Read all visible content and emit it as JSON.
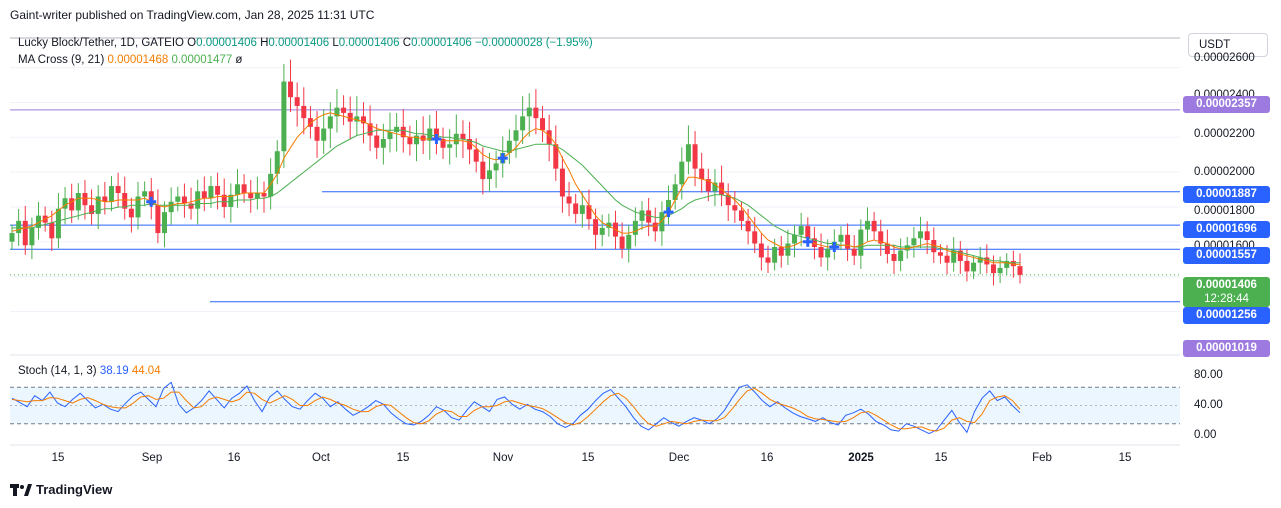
{
  "header": "Gaint-writer published on TradingView.com, Jan 28, 2025 11:31 UTC",
  "legend": {
    "symbol": "Lucky Block/Tether, 1D, GATEIO",
    "o_label": "O",
    "o_value": "0.00001406",
    "h_label": "H",
    "h_value": "0.00001406",
    "l_label": "L",
    "l_value": "0.00001406",
    "c_label": "C",
    "c_value": "0.00001406",
    "change": "−0.00000028 (−1.95%)",
    "ma_label": "MA Cross (9, 21)",
    "ma_fast": "0.00001468",
    "ma_slow": "0.00001477",
    "ma_extra": "ø"
  },
  "stoch_legend": {
    "label": "Stoch (14, 1, 3)",
    "k": "38.19",
    "d": "44.04"
  },
  "currency": "USDT",
  "footer": "TradingView",
  "price_axis": [
    "0.00002600",
    "0.00002400",
    "0.00002200",
    "0.00002000",
    "0.00001800",
    "0.00001600"
  ],
  "stoch_axis": [
    "80.00",
    "40.00",
    "0.00"
  ],
  "price_tags": {
    "t2357": "0.00002357",
    "t1887": "0.00001887",
    "t1696": "0.00001696",
    "t1557": "0.00001557",
    "current": "0.00001406",
    "countdown": "12:28:44",
    "t1256": "0.00001256",
    "t1019": "0.00001019"
  },
  "time_axis": [
    {
      "label": "15",
      "bold": false
    },
    {
      "label": "Sep",
      "bold": false
    },
    {
      "label": "16",
      "bold": false
    },
    {
      "label": "Oct",
      "bold": false
    },
    {
      "label": "15",
      "bold": false
    },
    {
      "label": "Nov",
      "bold": false
    },
    {
      "label": "15",
      "bold": false
    },
    {
      "label": "Dec",
      "bold": false
    },
    {
      "label": "16",
      "bold": false
    },
    {
      "label": "2025",
      "bold": true
    },
    {
      "label": "15",
      "bold": false
    },
    {
      "label": "Feb",
      "bold": false
    },
    {
      "label": "15",
      "bold": false
    }
  ],
  "colors": {
    "up": "#4caf50",
    "down": "#f23645",
    "ma_fast": "#f57c00",
    "ma_slow": "#4caf50",
    "line_blue": "#2962ff",
    "tag_purple": "#9c7ae0",
    "tag_green": "#4caf50"
  },
  "chart_data": {
    "type": "candlestick",
    "ylim": [
      9.5e-06,
      2.77e-05
    ],
    "horizontal_levels": [
      2.357e-05,
      1.887e-05,
      1.696e-05,
      1.557e-05,
      1.256e-05
    ],
    "closes": [
      1.65e-05,
      1.72e-05,
      1.58e-05,
      1.68e-05,
      1.75e-05,
      1.71e-05,
      1.62e-05,
      1.79e-05,
      1.85e-05,
      1.78e-05,
      1.88e-05,
      1.81e-05,
      1.76e-05,
      1.86e-05,
      1.83e-05,
      1.92e-05,
      1.88e-05,
      1.79e-05,
      1.74e-05,
      1.86e-05,
      1.89e-05,
      1.81e-05,
      1.65e-05,
      1.77e-05,
      1.83e-05,
      1.86e-05,
      1.82e-05,
      1.79e-05,
      1.89e-05,
      1.85e-05,
      1.92e-05,
      1.87e-05,
      1.8e-05,
      1.87e-05,
      1.93e-05,
      1.88e-05,
      1.85e-05,
      1.88e-05,
      1.86e-05,
      1.99e-05,
      2.12e-05,
      2.52e-05,
      2.43e-05,
      2.38e-05,
      2.31e-05,
      2.26e-05,
      2.18e-05,
      2.25e-05,
      2.32e-05,
      2.37e-05,
      2.34e-05,
      2.29e-05,
      2.32e-05,
      2.28e-05,
      2.21e-05,
      2.14e-05,
      2.19e-05,
      2.23e-05,
      2.26e-05,
      2.2e-05,
      2.16e-05,
      2.21e-05,
      2.18e-05,
      2.25e-05,
      2.19e-05,
      2.14e-05,
      2.16e-05,
      2.22e-05,
      2.19e-05,
      2.13e-05,
      2.06e-05,
      1.96e-05,
      2.01e-05,
      2.05e-05,
      2.11e-05,
      2.18e-05,
      2.24e-05,
      2.32e-05,
      2.37e-05,
      2.31e-05,
      2.24e-05,
      2.16e-05,
      2.02e-05,
      1.86e-05,
      1.82e-05,
      1.76e-05,
      1.81e-05,
      1.73e-05,
      1.64e-05,
      1.68e-05,
      1.71e-05,
      1.63e-05,
      1.56e-05,
      1.64e-05,
      1.72e-05,
      1.78e-05,
      1.71e-05,
      1.66e-05,
      1.77e-05,
      1.84e-05,
      1.93e-05,
      2.06e-05,
      2.16e-05,
      2.02e-05,
      1.96e-05,
      1.89e-05,
      1.94e-05,
      1.87e-05,
      1.81e-05,
      1.78e-05,
      1.72e-05,
      1.66e-05,
      1.59e-05,
      1.51e-05,
      1.48e-05,
      1.57e-05,
      1.52e-05,
      1.59e-05,
      1.64e-05,
      1.69e-05,
      1.62e-05,
      1.57e-05,
      1.51e-05,
      1.56e-05,
      1.6e-05,
      1.64e-05,
      1.56e-05,
      1.52e-05,
      1.67e-05,
      1.72e-05,
      1.66e-05,
      1.59e-05,
      1.53e-05,
      1.49e-05,
      1.55e-05,
      1.58e-05,
      1.62e-05,
      1.66e-05,
      1.61e-05,
      1.54e-05,
      1.52e-05,
      1.48e-05,
      1.55e-05,
      1.49e-05,
      1.43e-05,
      1.48e-05,
      1.51e-05,
      1.47e-05,
      1.42e-05,
      1.45e-05,
      1.49e-05,
      1.46e-05,
      1.41e-05
    ],
    "ma_fast_series": [
      1.66e-05,
      1.67e-05,
      1.68e-05,
      1.69e-05,
      1.71e-05,
      1.73e-05,
      1.75e-05,
      1.78e-05,
      1.81e-05,
      1.83e-05,
      1.85e-05,
      1.85e-05,
      1.85e-05,
      1.84e-05,
      1.83e-05,
      1.83e-05,
      1.84e-05,
      1.84e-05,
      1.84e-05,
      1.84e-05,
      1.85e-05,
      1.83e-05,
      1.81e-05,
      1.8e-05,
      1.81e-05,
      1.82e-05,
      1.82e-05,
      1.83e-05,
      1.84e-05,
      1.85e-05,
      1.85e-05,
      1.86e-05,
      1.86e-05,
      1.86e-05,
      1.87e-05,
      1.88e-05,
      1.88e-05,
      1.88e-05,
      1.88e-05,
      1.93e-05,
      1.99e-05,
      2.08e-05,
      2.14e-05,
      2.2e-05,
      2.24e-05,
      2.28e-05,
      2.31e-05,
      2.33e-05,
      2.34e-05,
      2.33e-05,
      2.32e-05,
      2.31e-05,
      2.3e-05,
      2.29e-05,
      2.27e-05,
      2.25e-05,
      2.24e-05,
      2.23e-05,
      2.22e-05,
      2.21e-05,
      2.2e-05,
      2.2e-05,
      2.19e-05,
      2.19e-05,
      2.19e-05,
      2.18e-05,
      2.18e-05,
      2.18e-05,
      2.18e-05,
      2.17e-05,
      2.14e-05,
      2.1e-05,
      2.08e-05,
      2.07e-05,
      2.08e-05,
      2.11e-05,
      2.14e-05,
      2.19e-05,
      2.23e-05,
      2.25e-05,
      2.24e-05,
      2.21e-05,
      2.16e-05,
      2.08e-05,
      2.01e-05,
      1.93e-05,
      1.87e-05,
      1.81e-05,
      1.75e-05,
      1.71e-05,
      1.69e-05,
      1.67e-05,
      1.65e-05,
      1.65e-05,
      1.66e-05,
      1.68e-05,
      1.69e-05,
      1.69e-05,
      1.72e-05,
      1.77e-05,
      1.84e-05,
      1.91e-05,
      1.97e-05,
      1.97e-05,
      1.96e-05,
      1.95e-05,
      1.93e-05,
      1.9e-05,
      1.87e-05,
      1.84e-05,
      1.8e-05,
      1.75e-05,
      1.7e-05,
      1.65e-05,
      1.61e-05,
      1.59e-05,
      1.57e-05,
      1.57e-05,
      1.58e-05,
      1.6e-05,
      1.6e-05,
      1.59e-05,
      1.58e-05,
      1.57e-05,
      1.57e-05,
      1.58e-05,
      1.58e-05,
      1.57e-05,
      1.58e-05,
      1.6e-05,
      1.61e-05,
      1.6e-05,
      1.59e-05,
      1.57e-05,
      1.56e-05,
      1.56e-05,
      1.57e-05,
      1.58e-05,
      1.59e-05,
      1.58e-05,
      1.57e-05,
      1.55e-05,
      1.54e-05,
      1.53e-05,
      1.52e-05,
      1.51e-05,
      1.5e-05,
      1.49e-05,
      1.48e-05,
      1.48e-05,
      1.48e-05,
      1.47e-05,
      1.47e-05
    ],
    "ma_slow_series": [
      1.68e-05,
      1.68e-05,
      1.68e-05,
      1.68e-05,
      1.69e-05,
      1.7e-05,
      1.71e-05,
      1.72e-05,
      1.73e-05,
      1.74e-05,
      1.75e-05,
      1.76e-05,
      1.77e-05,
      1.78e-05,
      1.79e-05,
      1.79e-05,
      1.8e-05,
      1.8e-05,
      1.81e-05,
      1.81e-05,
      1.81e-05,
      1.82e-05,
      1.81e-05,
      1.81e-05,
      1.81e-05,
      1.81e-05,
      1.81e-05,
      1.81e-05,
      1.82e-05,
      1.82e-05,
      1.82e-05,
      1.83e-05,
      1.83e-05,
      1.83e-05,
      1.84e-05,
      1.84e-05,
      1.84e-05,
      1.85e-05,
      1.85e-05,
      1.86e-05,
      1.88e-05,
      1.91e-05,
      1.94e-05,
      1.97e-05,
      2e-05,
      2.03e-05,
      2.06e-05,
      2.09e-05,
      2.12e-05,
      2.15e-05,
      2.17e-05,
      2.19e-05,
      2.21e-05,
      2.22e-05,
      2.23e-05,
      2.24e-05,
      2.24e-05,
      2.24e-05,
      2.24e-05,
      2.24e-05,
      2.23e-05,
      2.22e-05,
      2.22e-05,
      2.21e-05,
      2.21e-05,
      2.2e-05,
      2.2e-05,
      2.19e-05,
      2.19e-05,
      2.18e-05,
      2.17e-05,
      2.15e-05,
      2.14e-05,
      2.13e-05,
      2.12e-05,
      2.12e-05,
      2.13e-05,
      2.14e-05,
      2.15e-05,
      2.16e-05,
      2.16e-05,
      2.16e-05,
      2.15e-05,
      2.13e-05,
      2.1e-05,
      2.07e-05,
      2.04e-05,
      2e-05,
      1.96e-05,
      1.92e-05,
      1.88e-05,
      1.84e-05,
      1.81e-05,
      1.79e-05,
      1.77e-05,
      1.76e-05,
      1.75e-05,
      1.74e-05,
      1.74e-05,
      1.75e-05,
      1.77e-05,
      1.79e-05,
      1.82e-05,
      1.84e-05,
      1.85e-05,
      1.86e-05,
      1.87e-05,
      1.87e-05,
      1.86e-05,
      1.85e-05,
      1.83e-05,
      1.81e-05,
      1.78e-05,
      1.75e-05,
      1.72e-05,
      1.69e-05,
      1.67e-05,
      1.65e-05,
      1.64e-05,
      1.63e-05,
      1.62e-05,
      1.61e-05,
      1.6e-05,
      1.59e-05,
      1.59e-05,
      1.58e-05,
      1.58e-05,
      1.57e-05,
      1.57e-05,
      1.58e-05,
      1.58e-05,
      1.58e-05,
      1.58e-05,
      1.58e-05,
      1.57e-05,
      1.57e-05,
      1.57e-05,
      1.57e-05,
      1.57e-05,
      1.57e-05,
      1.56e-05,
      1.56e-05,
      1.55e-05,
      1.54e-05,
      1.53e-05,
      1.52e-05,
      1.51e-05,
      1.5e-05,
      1.49e-05,
      1.49e-05,
      1.48e-05,
      1.48e-05,
      1.48e-05
    ],
    "cross_indices": [
      21,
      64,
      74,
      99,
      120,
      124
    ],
    "stoch_range": [
      0,
      100
    ],
    "stoch_bands": [
      80,
      20
    ],
    "stoch_k": [
      62,
      55,
      48,
      66,
      58,
      72,
      54,
      48,
      60,
      70,
      58,
      46,
      52,
      44,
      40,
      54,
      66,
      72,
      60,
      48,
      78,
      88,
      52,
      38,
      46,
      58,
      74,
      60,
      46,
      62,
      70,
      82,
      58,
      40,
      64,
      74,
      60,
      48,
      44,
      58,
      70,
      62,
      48,
      56,
      44,
      34,
      40,
      48,
      58,
      52,
      38,
      28,
      20,
      18,
      24,
      34,
      48,
      42,
      30,
      26,
      42,
      56,
      48,
      40,
      60,
      64,
      52,
      44,
      52,
      44,
      40,
      32,
      20,
      14,
      20,
      34,
      44,
      58,
      70,
      76,
      62,
      48,
      30,
      16,
      10,
      20,
      30,
      22,
      16,
      24,
      30,
      26,
      20,
      28,
      42,
      62,
      80,
      84,
      72,
      58,
      48,
      56,
      46,
      38,
      32,
      28,
      24,
      30,
      22,
      18,
      34,
      38,
      44,
      36,
      24,
      18,
      10,
      8,
      20,
      16,
      10,
      4,
      10,
      26,
      42,
      22,
      6,
      40,
      62,
      74,
      58,
      64,
      50,
      38
    ],
    "stoch_d": [
      60,
      58,
      56,
      58,
      58,
      63,
      62,
      58,
      54,
      60,
      63,
      58,
      52,
      48,
      46,
      46,
      54,
      64,
      66,
      60,
      62,
      72,
      72,
      58,
      46,
      48,
      60,
      64,
      60,
      56,
      60,
      72,
      70,
      60,
      54,
      60,
      66,
      60,
      50,
      50,
      58,
      64,
      60,
      54,
      50,
      44,
      40,
      40,
      48,
      52,
      50,
      40,
      30,
      22,
      20,
      25,
      36,
      42,
      40,
      32,
      32,
      42,
      48,
      48,
      50,
      56,
      58,
      54,
      50,
      48,
      45,
      38,
      30,
      22,
      18,
      22,
      32,
      44,
      56,
      66,
      70,
      62,
      48,
      32,
      20,
      16,
      20,
      24,
      22,
      20,
      24,
      26,
      25,
      25,
      30,
      44,
      60,
      74,
      78,
      70,
      60,
      54,
      50,
      46,
      40,
      32,
      28,
      27,
      25,
      23,
      24,
      30,
      38,
      40,
      34,
      26,
      18,
      12,
      12,
      14,
      15,
      10,
      8,
      13,
      26,
      30,
      24,
      22,
      36,
      58,
      64,
      66,
      58,
      44
    ]
  }
}
